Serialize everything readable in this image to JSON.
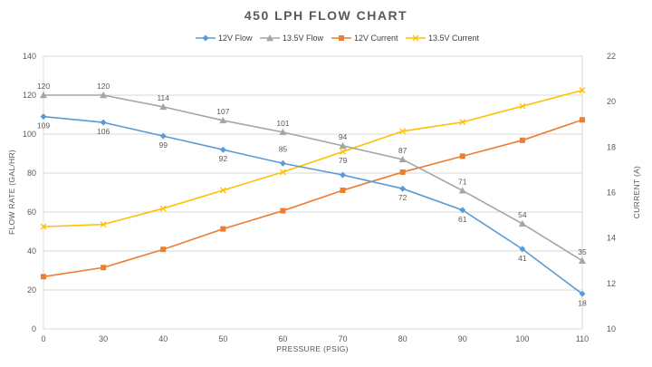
{
  "chart_data": {
    "type": "line",
    "title": "450 LPH FLOW CHART",
    "xlabel": "PRESSURE (PSIG)",
    "ylabel": "FLOW RATE (GAL/HR)",
    "y2label": "CURRENT (A)",
    "categories": [
      "0",
      "30",
      "40",
      "50",
      "60",
      "70",
      "80",
      "90",
      "100",
      "110"
    ],
    "ylim": [
      0,
      140
    ],
    "y_ticks": [
      0,
      20,
      40,
      60,
      80,
      100,
      120,
      140
    ],
    "y2lim": [
      10,
      22
    ],
    "y2_ticks": [
      10,
      12,
      14,
      16,
      18,
      20,
      22
    ],
    "grid": true,
    "legend_position": "top",
    "series": [
      {
        "name": "12V Flow",
        "axis": "left",
        "color": "#5B9BD5",
        "marker": "diamond",
        "values": [
          109,
          106,
          99,
          92,
          85,
          79,
          72,
          61,
          41,
          18
        ],
        "labels": [
          "109",
          "106",
          "99",
          "92",
          "85",
          "79",
          "72",
          "61",
          "41",
          "18"
        ]
      },
      {
        "name": "13.5V Flow",
        "axis": "left",
        "color": "#A5A5A5",
        "marker": "triangle",
        "values": [
          120,
          120,
          114,
          107,
          101,
          94,
          87,
          71,
          54,
          35
        ],
        "labels": [
          "120",
          "120",
          "114",
          "107",
          "101",
          "94",
          "87",
          "71",
          "54",
          "35"
        ]
      },
      {
        "name": "12V Current",
        "axis": "right",
        "color": "#ED7D31",
        "marker": "square",
        "values": [
          12.3,
          12.7,
          13.5,
          14.4,
          15.2,
          16.1,
          16.9,
          17.6,
          18.3,
          19.2
        ]
      },
      {
        "name": "13.5V Current",
        "axis": "right",
        "color": "#FFC000",
        "marker": "x",
        "values": [
          14.5,
          14.6,
          15.3,
          16.1,
          16.9,
          17.8,
          18.7,
          19.1,
          19.8,
          20.5
        ]
      }
    ]
  }
}
